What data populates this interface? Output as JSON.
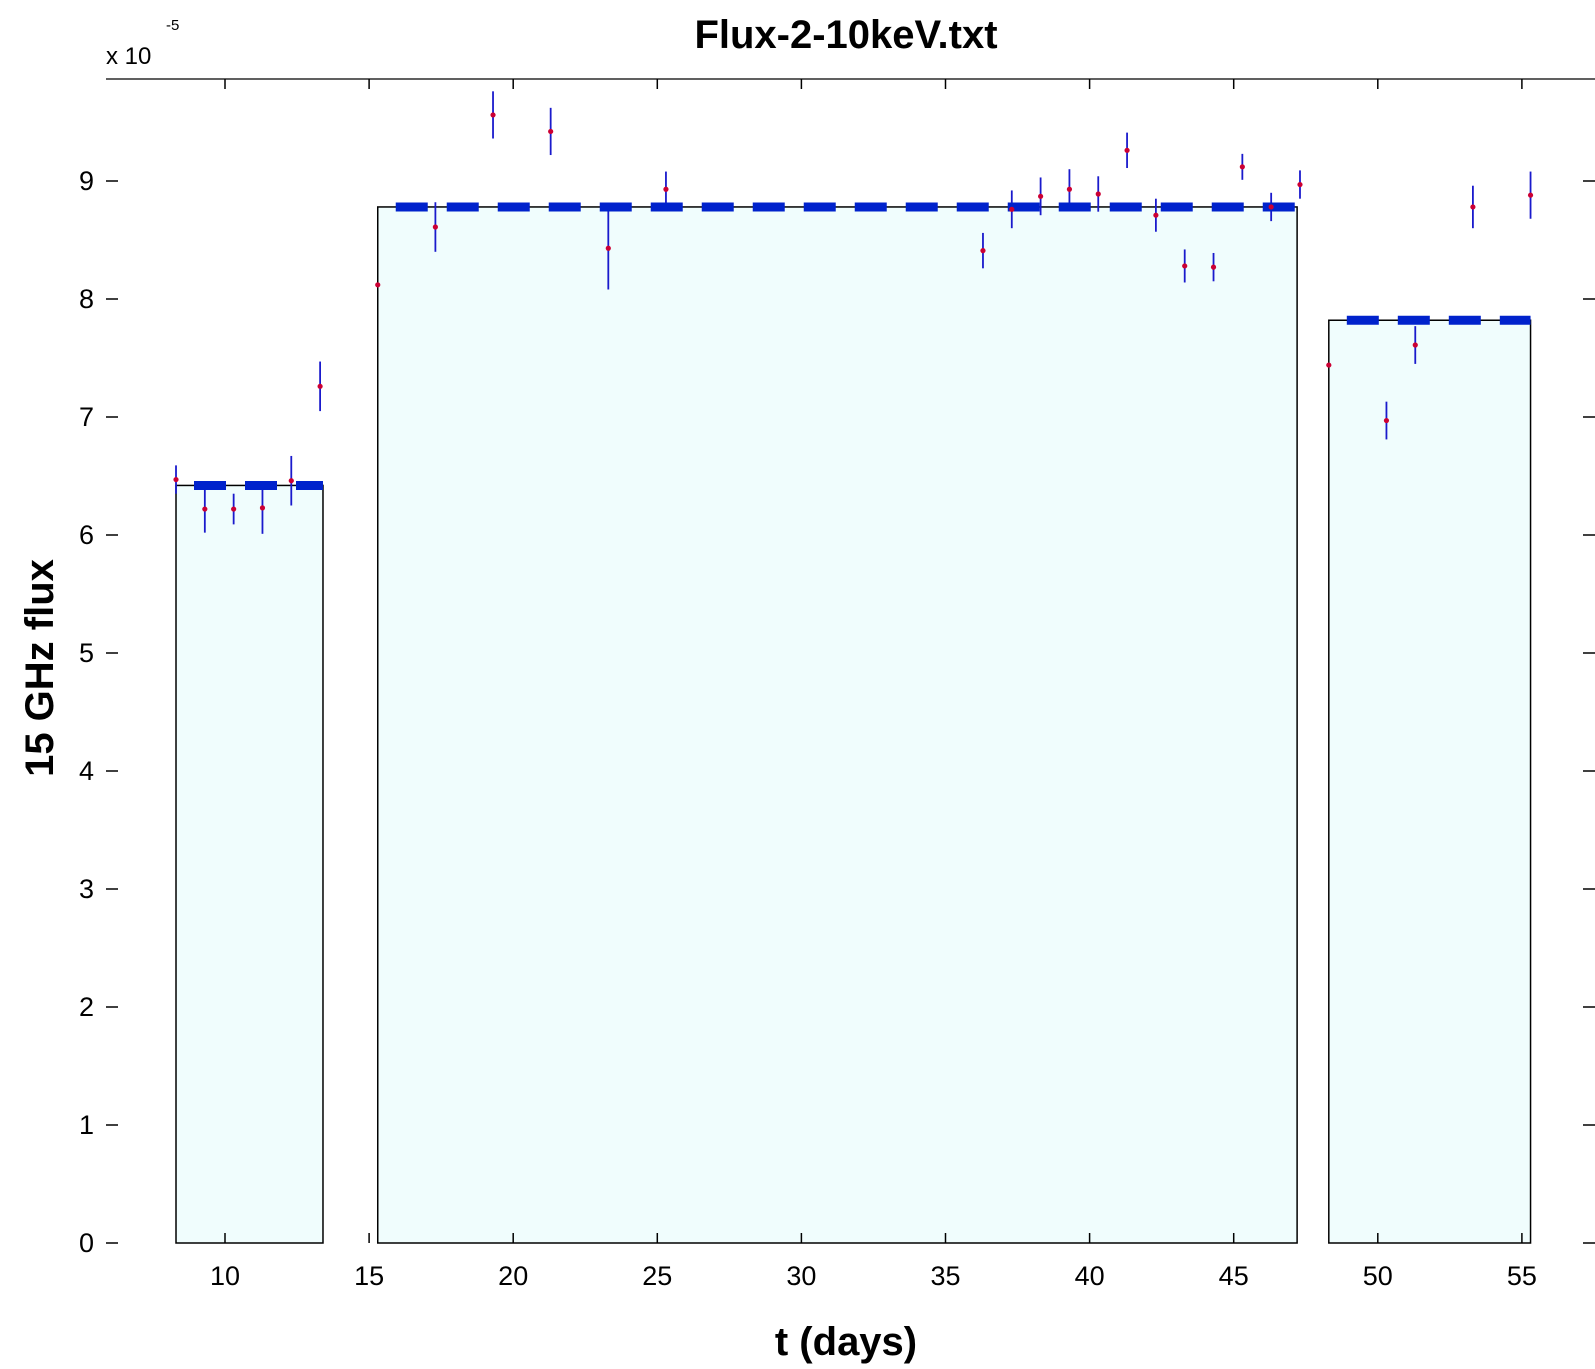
{
  "chart_data": {
    "type": "scatter",
    "title": "Flux-2-10keV.txt",
    "xlabel": "t (days)",
    "ylabel": "15 GHz flux",
    "y_multiplier": {
      "base": "x 10",
      "exponent": "-5"
    },
    "xlim": [
      6,
      58
    ],
    "ylim": [
      0,
      9.9
    ],
    "x_ticks": [
      10,
      15,
      20,
      25,
      30,
      35,
      40,
      45,
      50,
      55
    ],
    "y_ticks": [
      0,
      1,
      2,
      3,
      4,
      5,
      6,
      7,
      8,
      9
    ],
    "grid": false,
    "colors": {
      "block_fill": "#f0fdfd",
      "block_edge": "#000000",
      "mean_line": "#0022cc",
      "errorbar": "#1a1acc",
      "point": "#cc0033"
    },
    "blocks": [
      {
        "x_start": 8.3,
        "x_end": 13.4,
        "value": 6.42
      },
      {
        "x_start": 15.3,
        "x_end": 47.2,
        "value": 8.78
      },
      {
        "x_start": 48.3,
        "x_end": 55.3,
        "value": 7.82
      }
    ],
    "series": [
      {
        "x": [
          8.3,
          9.3,
          10.3,
          11.3,
          12.3,
          13.3,
          15.3,
          17.3,
          19.3,
          21.3,
          23.3,
          25.3,
          36.3,
          37.3,
          38.3,
          39.3,
          40.3,
          41.3,
          42.3,
          43.3,
          44.3,
          45.3,
          46.3,
          47.3,
          48.3,
          50.3,
          51.3,
          53.3,
          55.3
        ],
        "y": [
          6.47,
          6.22,
          6.22,
          6.23,
          6.46,
          7.26,
          8.12,
          8.61,
          9.56,
          9.42,
          8.43,
          8.93,
          8.41,
          8.76,
          8.87,
          8.93,
          8.89,
          9.26,
          8.71,
          8.28,
          8.27,
          9.12,
          8.78,
          8.97,
          7.44,
          6.97,
          7.61,
          8.78,
          8.88
        ],
        "err": [
          0.12,
          0.2,
          0.13,
          0.22,
          0.21,
          0.21,
          0.0,
          0.21,
          0.2,
          0.2,
          0.35,
          0.15,
          0.15,
          0.16,
          0.16,
          0.17,
          0.15,
          0.15,
          0.14,
          0.14,
          0.12,
          0.11,
          0.12,
          0.12,
          0.0,
          0.16,
          0.16,
          0.18,
          0.2
        ]
      }
    ]
  }
}
